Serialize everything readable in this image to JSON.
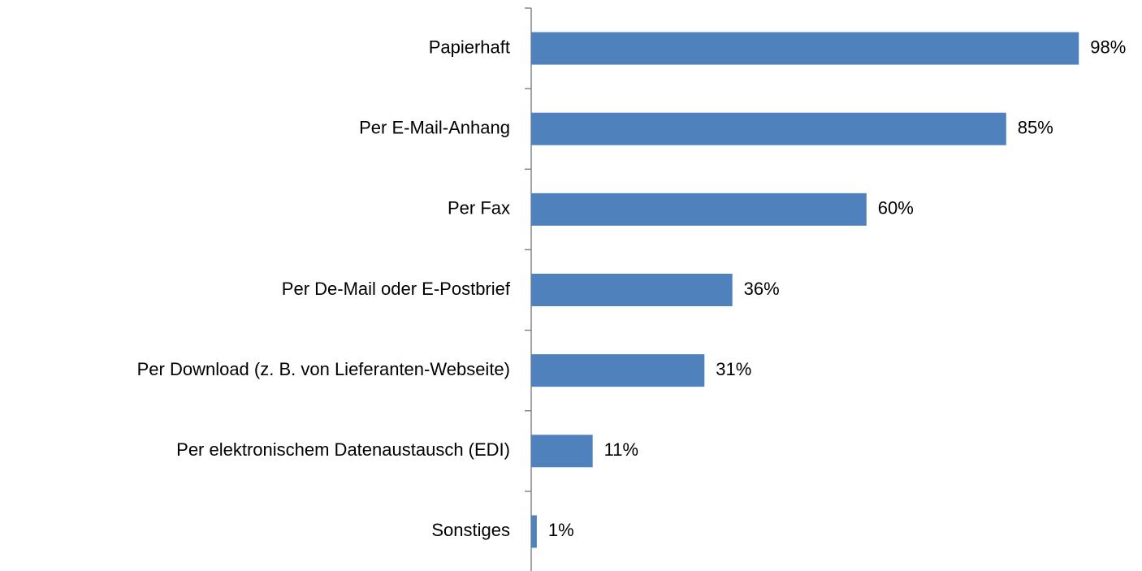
{
  "chart_data": {
    "type": "bar",
    "orientation": "horizontal",
    "categories": [
      "Papierhaft",
      "Per E-Mail-Anhang",
      "Per Fax",
      "Per De-Mail oder E-Postbrief",
      "Per Download (z. B. von Lieferanten-Webseite)",
      "Per elektronischem Datenaustausch (EDI)",
      "Sonstiges"
    ],
    "values": [
      98,
      85,
      60,
      36,
      31,
      11,
      1
    ],
    "value_labels": [
      "98%",
      "85%",
      "60%",
      "36%",
      "31%",
      "11%",
      "1%"
    ],
    "color": "#4f81bd",
    "xlim": [
      0,
      100
    ]
  }
}
